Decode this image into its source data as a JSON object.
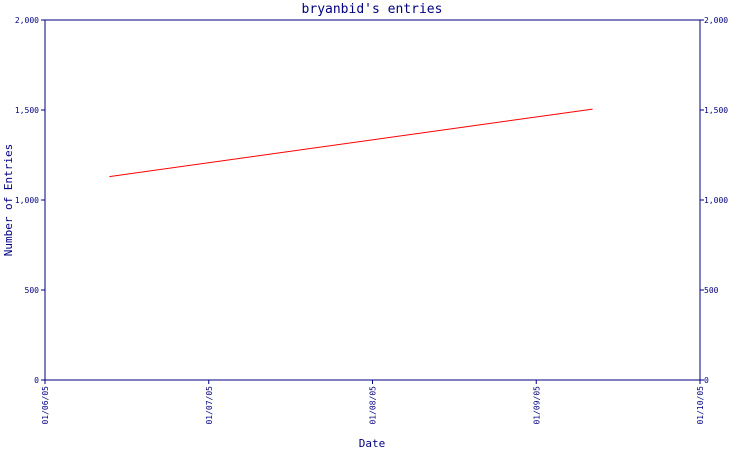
{
  "colors": {
    "axis": "#000080",
    "text": "#000080",
    "line": "#ff0000",
    "background": "#ffffff"
  },
  "chart_data": {
    "type": "line",
    "title": "bryanbid's entries",
    "xlabel": "Date",
    "ylabel": "Number of Entries",
    "x_tick_labels": [
      "01/06/05",
      "01/07/05",
      "01/08/05",
      "01/09/05",
      "01/10/05"
    ],
    "y_tick_labels": [
      "0",
      "500",
      "1,000",
      "1,500",
      "2,000"
    ],
    "y_ticks": [
      0,
      500,
      1000,
      1500,
      2000
    ],
    "ylim": [
      0,
      2000
    ],
    "xlim": [
      "2005-06-01",
      "2005-10-01"
    ],
    "right_axis_mirrored": true,
    "grid": false,
    "series": [
      {
        "x": [
          "2005-06-13",
          "2005-09-11"
        ],
        "values": [
          1130,
          1505
        ]
      }
    ]
  }
}
